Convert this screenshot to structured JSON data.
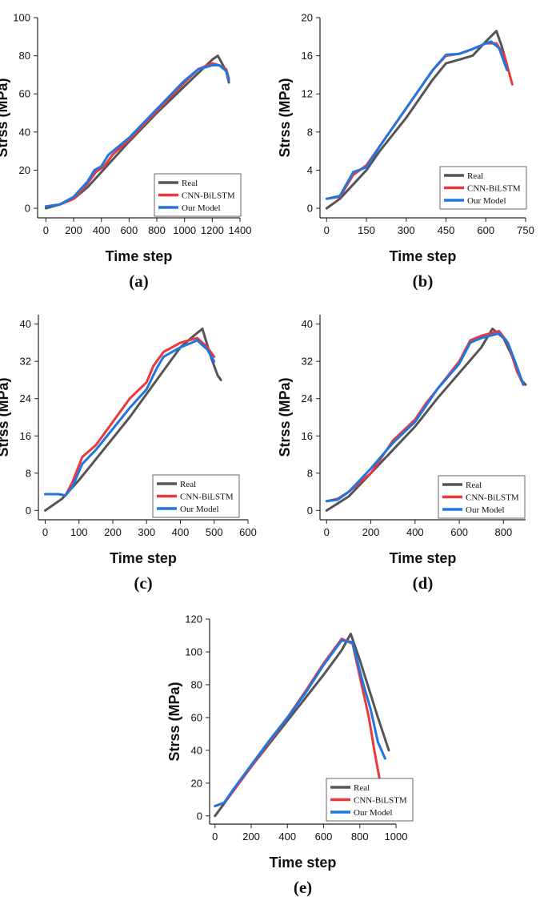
{
  "colors": {
    "real": "#555555",
    "cnn": "#e8393f",
    "ours": "#2176e0"
  },
  "legend": {
    "real": "Real",
    "cnn": "CNN-BiLSTM",
    "ours": "Our Model"
  },
  "chart_data": [
    {
      "id": "a",
      "caption": "(a)",
      "type": "line",
      "xlabel": "Time step",
      "ylabel": "Strss (MPa)",
      "xlim": [
        -60,
        1400
      ],
      "ylim": [
        -5,
        100
      ],
      "xticks": [
        0,
        200,
        400,
        600,
        800,
        1000,
        1200,
        1400
      ],
      "yticks": [
        0,
        20,
        40,
        60,
        80,
        100
      ],
      "series": [
        {
          "name": "Real",
          "x": [
            0,
            100,
            200,
            300,
            400,
            600,
            800,
            1000,
            1200,
            1240,
            1300,
            1320
          ],
          "y": [
            0,
            2,
            5,
            11,
            19,
            35,
            50,
            64,
            78,
            80,
            72,
            66
          ]
        },
        {
          "name": "CNN-BiLSTM",
          "x": [
            0,
            100,
            200,
            240,
            300,
            360,
            420,
            480,
            600,
            800,
            1000,
            1100,
            1200,
            1250,
            1300,
            1320
          ],
          "y": [
            1,
            2,
            5,
            8,
            13,
            19,
            22,
            28,
            36,
            51,
            66,
            73,
            76,
            75,
            73,
            68
          ]
        },
        {
          "name": "Our Model",
          "x": [
            0,
            100,
            200,
            250,
            300,
            350,
            400,
            450,
            600,
            800,
            1000,
            1100,
            1200,
            1250,
            1300,
            1320
          ],
          "y": [
            1,
            2,
            6,
            10,
            14,
            20,
            22,
            28,
            37,
            52,
            67,
            73,
            75,
            75,
            72,
            67
          ]
        }
      ]
    },
    {
      "id": "b",
      "caption": "(b)",
      "type": "line",
      "xlabel": "Time step",
      "ylabel": "Strss (MPa)",
      "xlim": [
        -25,
        750
      ],
      "ylim": [
        -1,
        20
      ],
      "xticks": [
        0,
        150,
        300,
        450,
        600,
        750
      ],
      "yticks": [
        0,
        4,
        8,
        12,
        16,
        20
      ],
      "series": [
        {
          "name": "Real",
          "x": [
            0,
            50,
            100,
            150,
            200,
            300,
            400,
            450,
            500,
            550,
            600,
            640,
            660,
            680
          ],
          "y": [
            0,
            1,
            2.5,
            4,
            6,
            9.5,
            13.5,
            15.2,
            15.6,
            16,
            17.5,
            18.6,
            17,
            15
          ]
        },
        {
          "name": "CNN-BiLSTM",
          "x": [
            0,
            50,
            100,
            150,
            200,
            300,
            400,
            450,
            500,
            550,
            600,
            640,
            670,
            690,
            700
          ],
          "y": [
            1,
            1.2,
            3.5,
            4.5,
            6.5,
            10.5,
            14.5,
            16,
            16.2,
            16.7,
            17.3,
            17.3,
            16,
            14,
            13
          ]
        },
        {
          "name": "Our Model",
          "x": [
            0,
            50,
            100,
            150,
            200,
            300,
            400,
            450,
            500,
            550,
            600,
            620,
            650,
            680
          ],
          "y": [
            1,
            1.3,
            3.8,
            4.3,
            6.5,
            10.5,
            14.5,
            16.1,
            16.2,
            16.7,
            17.3,
            17.5,
            16.8,
            14.5
          ]
        }
      ]
    },
    {
      "id": "c",
      "caption": "(c)",
      "type": "line",
      "xlabel": "Time step",
      "ylabel": "Strss (MPa)",
      "xlim": [
        -20,
        600
      ],
      "ylim": [
        -2,
        42
      ],
      "xticks": [
        0,
        100,
        200,
        300,
        400,
        500,
        600
      ],
      "yticks": [
        0,
        8,
        16,
        24,
        32,
        40
      ],
      "series": [
        {
          "name": "Real",
          "x": [
            0,
            50,
            100,
            150,
            200,
            250,
            300,
            350,
            400,
            440,
            465,
            490,
            510,
            520
          ],
          "y": [
            0,
            2.5,
            6.5,
            11,
            15.5,
            20,
            25,
            30,
            35,
            37.5,
            39,
            33,
            29,
            28
          ]
        },
        {
          "name": "CNN-BiLSTM",
          "x": [
            0,
            40,
            60,
            80,
            110,
            150,
            200,
            250,
            300,
            320,
            350,
            400,
            450,
            480,
            500
          ],
          "y": [
            3.5,
            3.5,
            3.2,
            6,
            11.5,
            14,
            19,
            24,
            27.5,
            31,
            34,
            36,
            37,
            35,
            33
          ]
        },
        {
          "name": "Our Model",
          "x": [
            0,
            40,
            60,
            80,
            110,
            150,
            200,
            250,
            300,
            330,
            350,
            400,
            450,
            480,
            500
          ],
          "y": [
            3.5,
            3.5,
            3.2,
            5,
            10,
            13,
            17.5,
            22,
            26,
            30.5,
            33,
            35,
            36.5,
            34.5,
            32
          ]
        }
      ]
    },
    {
      "id": "d",
      "caption": "(d)",
      "type": "line",
      "xlabel": "Time step",
      "ylabel": "Strss (MPa)",
      "xlim": [
        -30,
        900
      ],
      "ylim": [
        -2,
        42
      ],
      "xticks": [
        0,
        200,
        400,
        600,
        800
      ],
      "yticks": [
        0,
        8,
        16,
        24,
        32,
        40
      ],
      "series": [
        {
          "name": "Real",
          "x": [
            0,
            100,
            200,
            300,
            400,
            500,
            600,
            700,
            750,
            800,
            850,
            880,
            900
          ],
          "y": [
            0,
            3,
            8,
            13,
            18,
            24,
            29.5,
            35,
            39,
            37,
            32,
            28,
            27
          ]
        },
        {
          "name": "CNN-BiLSTM",
          "x": [
            0,
            50,
            100,
            200,
            300,
            400,
            450,
            500,
            600,
            650,
            700,
            780,
            820,
            860,
            890
          ],
          "y": [
            2,
            2.5,
            4,
            8,
            15,
            19.5,
            23,
            26,
            32,
            36.5,
            37.5,
            38.5,
            36,
            30,
            27
          ]
        },
        {
          "name": "Our Model",
          "x": [
            0,
            50,
            100,
            200,
            300,
            400,
            450,
            500,
            600,
            650,
            700,
            780,
            820,
            860,
            890
          ],
          "y": [
            2,
            2.3,
            4,
            9,
            14.5,
            19,
            22.5,
            26,
            31.5,
            36,
            37,
            38,
            36,
            31,
            27
          ]
        }
      ]
    },
    {
      "id": "e",
      "caption": "(e)",
      "type": "line",
      "xlabel": "Time step",
      "ylabel": "Strss (MPa)",
      "xlim": [
        -30,
        1000
      ],
      "ylim": [
        -5,
        120
      ],
      "xticks": [
        0,
        200,
        400,
        600,
        800,
        1000
      ],
      "yticks": [
        0,
        20,
        40,
        60,
        80,
        100,
        120
      ],
      "series": [
        {
          "name": "Real",
          "x": [
            0,
            100,
            200,
            300,
            400,
            500,
            600,
            700,
            750,
            800,
            900,
            960
          ],
          "y": [
            0,
            15,
            30,
            44,
            58,
            72,
            86,
            101,
            111,
            95,
            60,
            40
          ]
        },
        {
          "name": "CNN-BiLSTM",
          "x": [
            0,
            50,
            100,
            200,
            300,
            400,
            500,
            600,
            700,
            760,
            820,
            850,
            880,
            910,
            940
          ],
          "y": [
            6,
            8,
            15,
            30,
            45,
            60,
            76,
            93,
            108,
            105,
            75,
            60,
            40,
            22,
            19
          ]
        },
        {
          "name": "Our Model",
          "x": [
            0,
            50,
            100,
            200,
            300,
            400,
            500,
            600,
            700,
            760,
            820,
            860,
            900,
            940
          ],
          "y": [
            6,
            8,
            16,
            31,
            46,
            60,
            75,
            92,
            107,
            106,
            80,
            65,
            45,
            35
          ]
        }
      ]
    }
  ]
}
